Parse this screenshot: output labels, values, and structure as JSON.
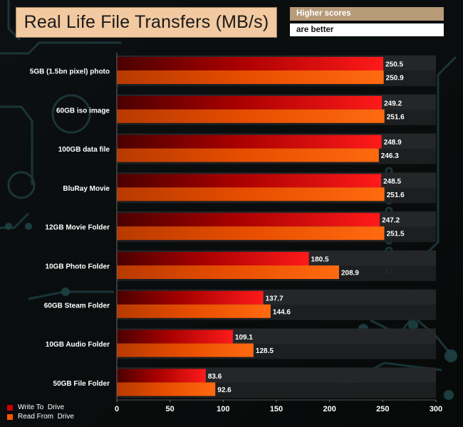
{
  "header": {
    "title": "Real Life File Transfers (MB/s)",
    "note_line1": "Higher scores",
    "note_line2": "are better"
  },
  "colors": {
    "write": "#cc0000",
    "read": "#ff5500",
    "title_bg": "#f2c9a0",
    "note_bg": "#b79a78"
  },
  "chart_data": {
    "type": "bar",
    "orientation": "horizontal",
    "categories": [
      "5GB (1.5bn pixel) photo",
      "60GB iso image",
      "100GB data file",
      "BluRay Movie",
      "12GB Movie Folder",
      "10GB Photo Folder",
      "60GB Steam Folder",
      "10GB Audio Folder",
      "50GB File Folder"
    ],
    "series": [
      {
        "name": "Write To  Drive",
        "values": [
          250.5,
          249.2,
          248.9,
          248.5,
          247.2,
          180.5,
          137.7,
          109.1,
          83.6
        ]
      },
      {
        "name": "Read From  Drive",
        "values": [
          250.9,
          251.6,
          246.3,
          251.6,
          251.5,
          208.9,
          144.6,
          128.5,
          92.6
        ]
      }
    ],
    "value_labels": [
      [
        "250.5",
        "249.2",
        "248.9",
        "248.5",
        "247.2",
        "180.5",
        "137.7",
        "109.1",
        "83.6"
      ],
      [
        "250.9",
        "251.6",
        "246.3",
        "251.6",
        "251.5",
        "208.9",
        "144.6",
        "128.5",
        "92.6"
      ]
    ],
    "xlim": [
      0,
      300
    ],
    "xticks": [
      0,
      50,
      100,
      150,
      200,
      250,
      300
    ],
    "tick_labels": [
      "0",
      "50",
      "100",
      "150",
      "200",
      "250",
      "300"
    ],
    "legend_position": "bottom-left",
    "grid": false
  }
}
